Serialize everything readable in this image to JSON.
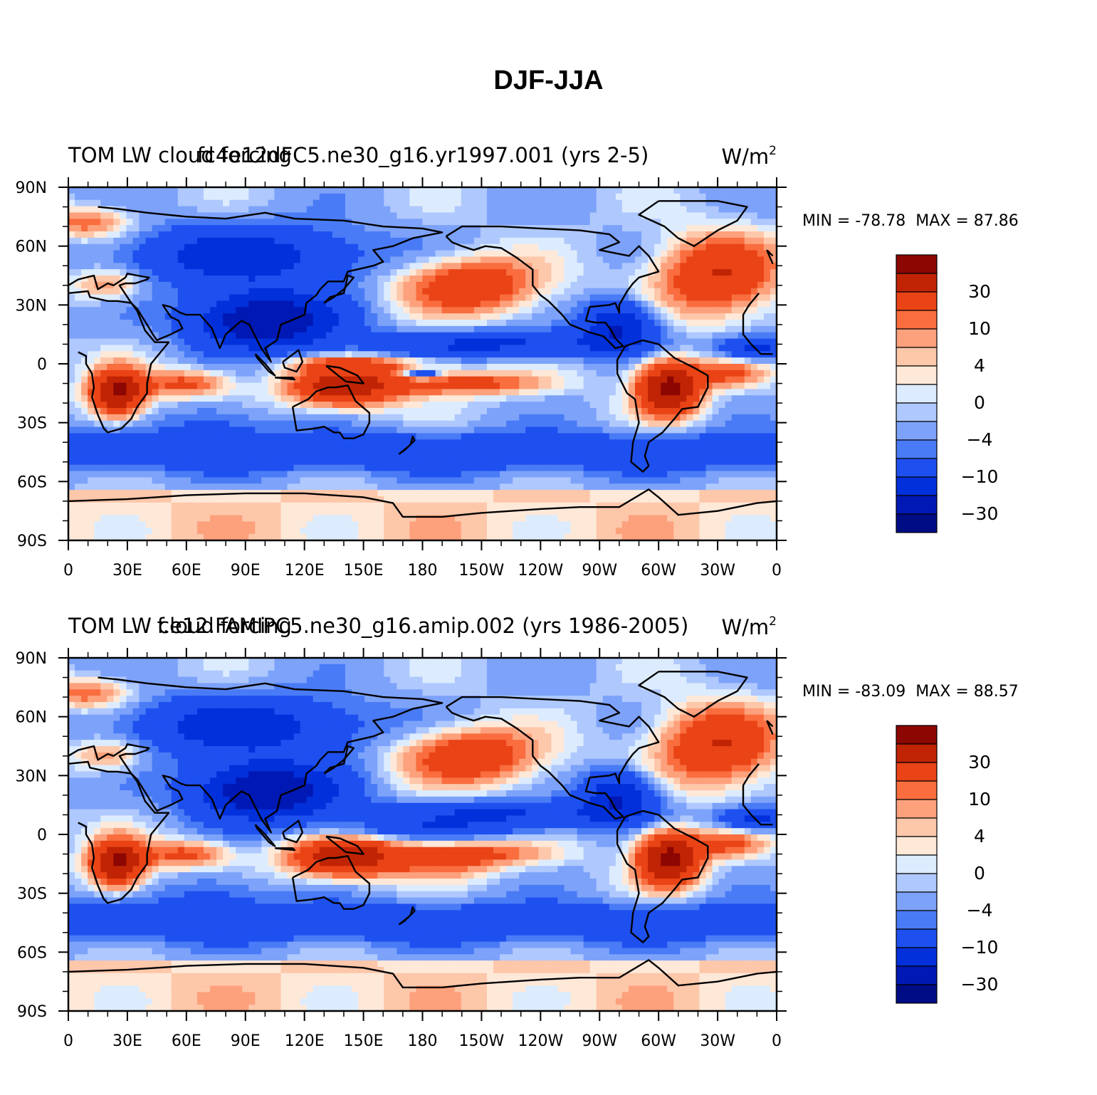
{
  "main_title": "DJF-JJA",
  "colors": {
    "levels": [
      "#000c84",
      "#0018b4",
      "#0230da",
      "#1e50f0",
      "#4a7bf6",
      "#7da2fa",
      "#afc8fd",
      "#dcecfe",
      "#fee8d8",
      "#fdc7aa",
      "#fca17c",
      "#f96d3e",
      "#e94316",
      "#c02404",
      "#8c0602"
    ],
    "land_outline": "#000000"
  },
  "chart_data": [
    {
      "type": "heatmap",
      "title_left": "TOM LW cloud forcing",
      "title_center": "fc4e12dFC5.ne30_g16.yr1997.001 (yrs 2-5)",
      "title_units": "W/m",
      "title_units_sup": "2",
      "min_label": "MIN = -78.78",
      "max_label": "MAX = 87.86",
      "min": -78.78,
      "max": 87.86,
      "x_ticks": [
        "0",
        "30E",
        "60E",
        "90E",
        "120E",
        "150E",
        "180",
        "150W",
        "120W",
        "90W",
        "60W",
        "30W",
        "0"
      ],
      "y_ticks": [
        "90N",
        "60N",
        "30N",
        "0",
        "30S",
        "60S",
        "90S"
      ],
      "colorbar_labels": [
        "30",
        "10",
        "4",
        "0",
        "-4",
        "-10",
        "-30"
      ]
    },
    {
      "type": "heatmap",
      "title_left": "TOM LW cloud forcing",
      "title_center": "f.e12.FAMIPC5.ne30_g16.amip.002 (yrs 1986-2005)",
      "title_units": "W/m",
      "title_units_sup": "2",
      "min_label": "MIN = -83.09",
      "max_label": "MAX = 88.57",
      "min": -83.09,
      "max": 88.57,
      "x_ticks": [
        "0",
        "30E",
        "60E",
        "90E",
        "120E",
        "150E",
        "180",
        "150W",
        "120W",
        "90W",
        "60W",
        "30W",
        "0"
      ],
      "y_ticks": [
        "90N",
        "60N",
        "30N",
        "0",
        "30S",
        "60S",
        "90S"
      ],
      "colorbar_labels": [
        "30",
        "10",
        "4",
        "0",
        "-4",
        "-10",
        "-30"
      ]
    }
  ]
}
